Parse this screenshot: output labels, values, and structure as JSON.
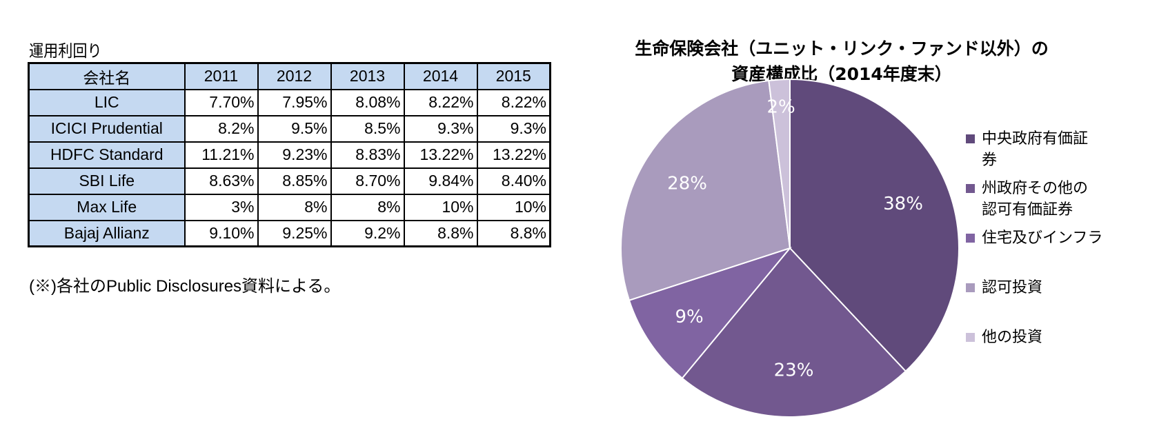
{
  "table": {
    "caption": "運用利回り",
    "header": [
      "会社名",
      "2011",
      "2012",
      "2013",
      "2014",
      "2015"
    ],
    "rows": [
      [
        "LIC",
        "7.70%",
        "7.95%",
        "8.08%",
        "8.22%",
        "8.22%"
      ],
      [
        "ICICI Prudential",
        "8.2%",
        "9.5%",
        "8.5%",
        "9.3%",
        "9.3%"
      ],
      [
        "HDFC Standard",
        "11.21%",
        "9.23%",
        "8.83%",
        "13.22%",
        "13.22%"
      ],
      [
        "SBI Life",
        "8.63%",
        "8.85%",
        "8.70%",
        "9.84%",
        "8.40%"
      ],
      [
        "Max Life",
        "3%",
        "8%",
        "8%",
        "10%",
        "10%"
      ],
      [
        "Bajaj Allianz",
        "9.10%",
        "9.25%",
        "9.2%",
        "8.8%",
        "8.8%"
      ]
    ],
    "note": "(※)各社のPublic Disclosures資料による。"
  },
  "chart_data": {
    "type": "pie",
    "title": "生命保険会社（ユニット・リンク・ファンド以外）の資産構成比（2014年度末）",
    "title_lines": [
      "生命保険会社（ユニット・リンク・ファンド以外）の",
      "資産構成比（2014年度末）"
    ],
    "legend_position": "right",
    "slices": [
      {
        "label": "中央政府有価証券",
        "value": 38,
        "display": "38%",
        "color": "#604a7b"
      },
      {
        "label": "州政府その他の認可有価証券",
        "value": 23,
        "display": "23%",
        "color": "#72588f"
      },
      {
        "label": "住宅及びインフラ",
        "value": 9,
        "display": "9%",
        "color": "#8064a2"
      },
      {
        "label": "認可投資",
        "value": 28,
        "display": "28%",
        "color": "#a99bbd"
      },
      {
        "label": "他の投資",
        "value": 2,
        "display": "2%",
        "color": "#ccc1da"
      }
    ],
    "legend_labels": [
      "中央政府有価証\n券",
      "州政府その他の\n認可有価証券",
      "住宅及びインフラ",
      "認可投資",
      "他の投資"
    ]
  }
}
